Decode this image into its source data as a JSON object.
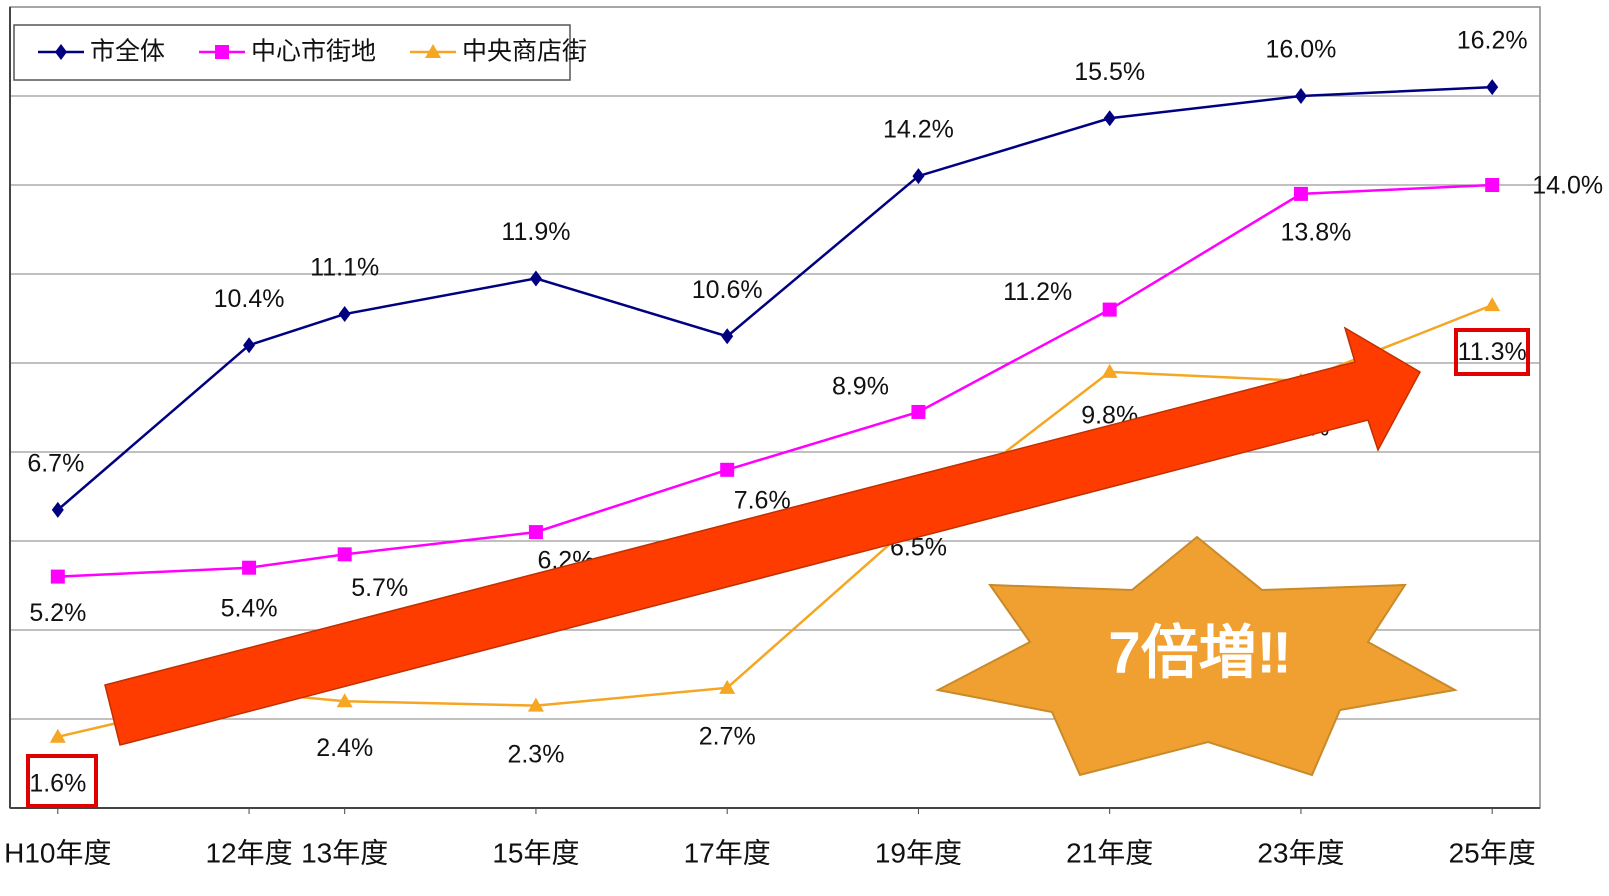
{
  "chart_data": {
    "type": "line",
    "x": [
      10,
      12,
      13,
      15,
      17,
      19,
      21,
      23,
      25
    ],
    "xlim": [
      9.5,
      25.5
    ],
    "xticks": [
      {
        "value": 10,
        "label": "H10年度"
      },
      {
        "value": 12,
        "label": "12年度"
      },
      {
        "value": 13,
        "label": "13年度"
      },
      {
        "value": 15,
        "label": "15年度"
      },
      {
        "value": 17,
        "label": "17年度"
      },
      {
        "value": 19,
        "label": "19年度"
      },
      {
        "value": 21,
        "label": "21年度"
      },
      {
        "value": 23,
        "label": "23年度"
      },
      {
        "value": 25,
        "label": "25年度"
      }
    ],
    "ylim": [
      0,
      18
    ],
    "yticks": [
      2,
      4,
      6,
      8,
      10,
      12,
      14,
      16
    ],
    "grid": true,
    "legend": "top-left",
    "series": [
      {
        "name": "市全体",
        "color": "#000080",
        "marker": "diamond",
        "values": [
          6.7,
          10.4,
          11.1,
          11.9,
          10.6,
          14.2,
          15.5,
          16.0,
          16.2
        ],
        "value_labels": [
          "6.7%",
          "10.4%",
          "11.1%",
          "11.9%",
          "10.6%",
          "14.2%",
          "15.5%",
          "16.0%",
          "16.2%"
        ]
      },
      {
        "name": "中心市街地",
        "color": "#ff00ff",
        "marker": "square",
        "values": [
          5.2,
          5.4,
          5.7,
          6.2,
          7.6,
          8.9,
          11.2,
          13.8,
          14.0
        ],
        "value_labels": [
          "5.2%",
          "5.4%",
          "5.7%",
          "6.2%",
          "7.6%",
          "8.9%",
          "11.2%",
          "13.8%",
          "14.0%"
        ]
      },
      {
        "name": "中央商店街",
        "color": "#f5a623",
        "marker": "triangle",
        "values": [
          1.6,
          2.6,
          2.4,
          2.3,
          2.7,
          6.5,
          9.8,
          9.6,
          11.3
        ],
        "value_labels": [
          "1.6%",
          "2.6%",
          "2.4%",
          "2.3%",
          "2.7%",
          "6.5%",
          "9.8%",
          "9.6%",
          "11.3%"
        ]
      }
    ],
    "annotation": "7倍増‼"
  }
}
